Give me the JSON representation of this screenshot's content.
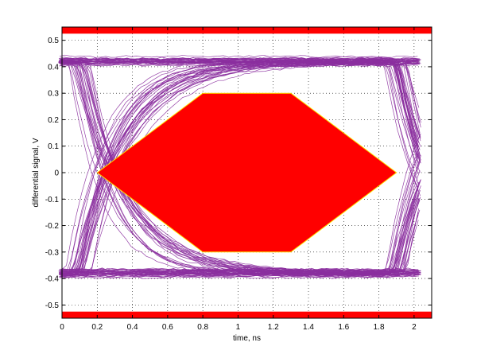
{
  "chart_data": {
    "type": "line",
    "xlabel": "time, ns",
    "ylabel": "differential signal, V",
    "xlim": [
      0,
      2.1
    ],
    "ylim": [
      -0.55,
      0.55
    ],
    "grid": true,
    "grid_style": "dotted",
    "xticks": [
      "0",
      "0.2",
      "0.4",
      "0.6",
      "0.8",
      "1",
      "1.2",
      "1.4",
      "1.6",
      "1.8",
      "2"
    ],
    "yticks": [
      "-0.5",
      "-0.4",
      "-0.3",
      "-0.2",
      "-0.1",
      "0",
      "0.1",
      "0.2",
      "0.3",
      "0.4",
      "0.5"
    ],
    "trace_color": "#8b2f9e",
    "mask_color": "#ff0000",
    "mask_outline_color": "#ffe000",
    "eye_mask": {
      "points": [
        [
          0.2,
          0
        ],
        [
          0.8,
          0.3
        ],
        [
          1.3,
          0.3
        ],
        [
          1.9,
          0
        ],
        [
          1.3,
          -0.3
        ],
        [
          0.8,
          -0.3
        ]
      ]
    },
    "limit_bands": [
      {
        "name": "upper-limit",
        "y_from": 0.525,
        "y_to": 0.55
      },
      {
        "name": "lower-limit",
        "y_from": -0.55,
        "y_to": -0.525
      }
    ],
    "signal_levels": {
      "high": 0.42,
      "low": -0.38
    },
    "trace_count": 120
  }
}
